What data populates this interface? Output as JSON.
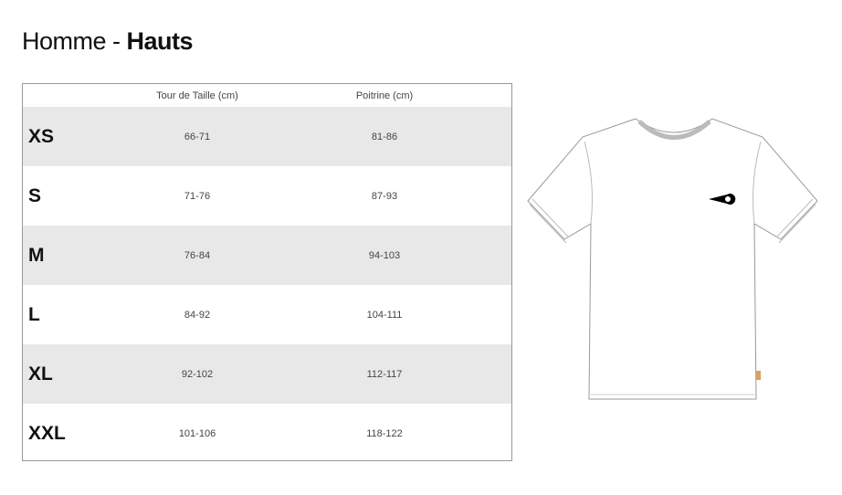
{
  "title": {
    "prefix": "Homme - ",
    "bold": "Hauts"
  },
  "table": {
    "headers": [
      "",
      "Tour de Taille (cm)",
      "Poitrine (cm)"
    ],
    "rows": [
      {
        "size": "XS",
        "taille": "66-71",
        "poitrine": "81-86"
      },
      {
        "size": "S",
        "taille": "71-76",
        "poitrine": "87-93"
      },
      {
        "size": "M",
        "taille": "76-84",
        "poitrine": "94-103"
      },
      {
        "size": "L",
        "taille": "84-92",
        "poitrine": "104-111"
      },
      {
        "size": "XL",
        "taille": "92-102",
        "poitrine": "112-117"
      },
      {
        "size": "XXL",
        "taille": "101-106",
        "poitrine": "118-122"
      }
    ]
  },
  "colors": {
    "row_alt": "#e8e8e8",
    "label_tag": "#d9a060"
  }
}
